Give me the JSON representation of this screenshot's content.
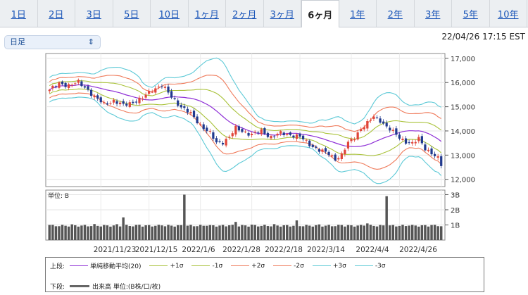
{
  "tabs": [
    {
      "label": "1日",
      "active": false
    },
    {
      "label": "2日",
      "active": false
    },
    {
      "label": "3日",
      "active": false
    },
    {
      "label": "5日",
      "active": false
    },
    {
      "label": "10日",
      "active": false
    },
    {
      "label": "1ヶ月",
      "active": false
    },
    {
      "label": "2ヶ月",
      "active": false
    },
    {
      "label": "3ヶ月",
      "active": false
    },
    {
      "label": "6ヶ月",
      "active": true
    },
    {
      "label": "1年",
      "active": false
    },
    {
      "label": "2年",
      "active": false
    },
    {
      "label": "3年",
      "active": false
    },
    {
      "label": "5年",
      "active": false
    },
    {
      "label": "10年",
      "active": false
    }
  ],
  "interval_select": {
    "value": "日足"
  },
  "timestamp": "22/04/26 17:15 EST",
  "colors": {
    "up": "#e0453a",
    "down": "#213a8e",
    "sma": "#8e2fd6",
    "sigma1": "#a9c23a",
    "sigma2": "#ef7a5a",
    "sigma3": "#5cc9d6",
    "volume": "#555555"
  },
  "chart_data": [
    {
      "type": "candlestick",
      "y_ticks": [
        "17,000",
        "16,000",
        "15,000",
        "14,000",
        "13,000",
        "12,000"
      ],
      "ylim": [
        11700,
        17200
      ],
      "grid": true,
      "x_tick_labels": [
        "2021/11/23",
        "2021/12/15",
        "2022/1/6",
        "2022/1/28",
        "2022/2/18",
        "2022/3/14",
        "2022/4/4",
        "2022/4/26"
      ],
      "close_anchors": [
        [
          0,
          15700
        ],
        [
          3,
          15950
        ],
        [
          6,
          15900
        ],
        [
          9,
          16000
        ],
        [
          12,
          15700
        ],
        [
          14,
          15400
        ],
        [
          17,
          15100
        ],
        [
          20,
          15250
        ],
        [
          23,
          15050
        ],
        [
          26,
          15200
        ],
        [
          29,
          15350
        ],
        [
          32,
          15700
        ],
        [
          35,
          15900
        ],
        [
          38,
          15400
        ],
        [
          41,
          15000
        ],
        [
          44,
          14700
        ],
        [
          47,
          14250
        ],
        [
          50,
          13900
        ],
        [
          52,
          13500
        ],
        [
          54,
          13550
        ],
        [
          56,
          13750
        ],
        [
          58,
          14100
        ],
        [
          60,
          14000
        ],
        [
          63,
          13850
        ],
        [
          66,
          14000
        ],
        [
          69,
          13750
        ],
        [
          72,
          13900
        ],
        [
          75,
          13850
        ],
        [
          78,
          13750
        ],
        [
          81,
          13450
        ],
        [
          84,
          13200
        ],
        [
          87,
          13050
        ],
        [
          89,
          12850
        ],
        [
          91,
          13000
        ],
        [
          93,
          13500
        ],
        [
          95,
          13750
        ],
        [
          97,
          14100
        ],
        [
          99,
          14300
        ],
        [
          101,
          14600
        ],
        [
          103,
          14450
        ],
        [
          105,
          14150
        ],
        [
          107,
          13950
        ],
        [
          109,
          13750
        ],
        [
          111,
          13550
        ],
        [
          113,
          13450
        ],
        [
          115,
          13700
        ],
        [
          117,
          13300
        ],
        [
          119,
          13050
        ],
        [
          121,
          12850
        ],
        [
          122,
          12600
        ]
      ],
      "series_legend": [
        {
          "name": "単純移動平均(20)",
          "color_key": "sma"
        },
        {
          "name": "+1σ",
          "color_key": "sigma1"
        },
        {
          "name": "-1σ",
          "color_key": "sigma1"
        },
        {
          "name": "+2σ",
          "color_key": "sigma2"
        },
        {
          "name": "-2σ",
          "color_key": "sigma2"
        },
        {
          "name": "+3σ",
          "color_key": "sigma3"
        },
        {
          "name": "-3σ",
          "color_key": "sigma3"
        }
      ]
    },
    {
      "type": "bar",
      "title": "単位: B",
      "y_ticks": [
        "3B",
        "2B",
        "1B"
      ],
      "ylim": [
        0,
        3.3
      ],
      "values_base": 0.95,
      "spikes": [
        [
          23,
          1.5
        ],
        [
          42,
          3.0
        ],
        [
          77,
          1.3
        ],
        [
          99,
          1.1
        ],
        [
          105,
          2.9
        ],
        [
          58,
          1.2
        ]
      ]
    }
  ],
  "legend": {
    "upper_label": "上段:",
    "lower_label": "下段:",
    "volume_label": "出来高 単位:(B株/口/枚)"
  }
}
